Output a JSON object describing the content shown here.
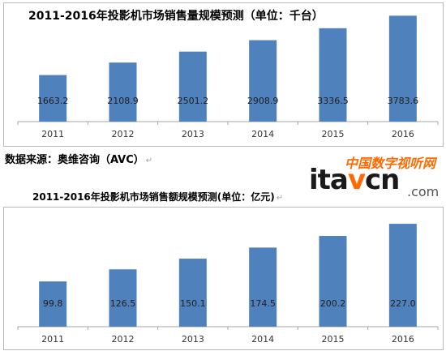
{
  "chart_data": [
    {
      "type": "bar",
      "title": "2011-2016年投影机市场销售量规模预测（单位：千台）",
      "categories": [
        "2011",
        "2012",
        "2013",
        "2014",
        "2015",
        "2016"
      ],
      "values": [
        1663.2,
        2108.9,
        2501.2,
        2908.9,
        3336.5,
        3783.6
      ],
      "value_labels": [
        "1663.2",
        "2108.9",
        "2501.2",
        "2908.9",
        "3336.5",
        "3783.6"
      ],
      "ylim": [
        0,
        4200
      ],
      "grid": false,
      "color": "#4f81bd"
    },
    {
      "type": "bar",
      "title": "2011-2016年投影机市场销售额规模预测(单位：亿元)",
      "categories": [
        "2011",
        "2012",
        "2013",
        "2014",
        "2015",
        "2016"
      ],
      "values": [
        99.8,
        126.5,
        150.1,
        174.5,
        200.2,
        227.0
      ],
      "value_labels": [
        "99.8",
        "126.5",
        "150.1",
        "174.5",
        "200.2",
        "227.0"
      ],
      "ylim": [
        0,
        245
      ],
      "grid": false,
      "color": "#4f81bd"
    }
  ],
  "source": {
    "text": "数据来源：奥维咨询（AVC）",
    "mark": "↵"
  },
  "chart2_heading_mark": "↵",
  "watermark": {
    "top": "中国数字视听网",
    "main_left": "ita",
    "main_accent": "v",
    "main_right": "cn",
    "domain": ".com"
  }
}
